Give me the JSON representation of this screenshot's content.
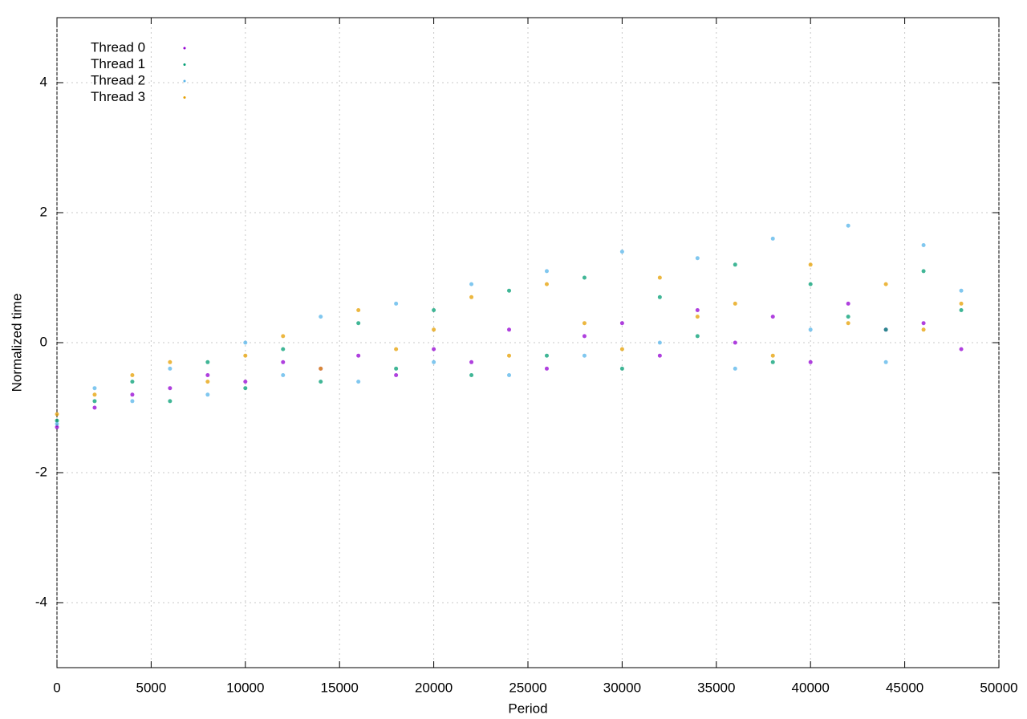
{
  "chart_data": {
    "type": "scatter",
    "xlabel": "Period",
    "ylabel": "Normalized time",
    "x": [
      0,
      2000,
      4000,
      6000,
      8000,
      10000,
      12000,
      14000,
      16000,
      18000,
      20000,
      22000,
      24000,
      26000,
      28000,
      30000,
      32000,
      34000,
      36000,
      38000,
      40000,
      42000,
      44000,
      46000,
      48000
    ],
    "series": [
      {
        "name": "Thread 0",
        "color": "#9400d3",
        "values": [
          -1.3,
          -1.0,
          -0.8,
          -0.7,
          -0.5,
          -0.6,
          -0.3,
          -0.4,
          -0.2,
          -0.5,
          -0.1,
          -0.3,
          0.2,
          -0.4,
          0.1,
          0.3,
          -0.2,
          0.5,
          0.0,
          0.4,
          -0.3,
          0.6,
          0.2,
          0.3,
          -0.1
        ]
      },
      {
        "name": "Thread 1",
        "color": "#009e73",
        "values": [
          -1.2,
          -0.9,
          -0.6,
          -0.9,
          -0.3,
          -0.7,
          -0.1,
          -0.6,
          0.3,
          -0.4,
          0.5,
          -0.5,
          0.8,
          -0.2,
          1.0,
          -0.4,
          0.7,
          0.1,
          1.2,
          -0.3,
          0.9,
          0.4,
          0.2,
          1.1,
          0.5
        ]
      },
      {
        "name": "Thread 2",
        "color": "#56b4e9",
        "values": [
          -1.25,
          -0.7,
          -0.9,
          -0.4,
          -0.8,
          0.0,
          -0.5,
          0.4,
          -0.6,
          0.6,
          -0.3,
          0.9,
          -0.5,
          1.1,
          -0.2,
          1.4,
          0.0,
          1.3,
          -0.4,
          1.6,
          0.2,
          1.8,
          -0.3,
          1.5,
          0.8
        ]
      },
      {
        "name": "Thread 3",
        "color": "#e69f00",
        "values": [
          -1.1,
          -0.8,
          -0.5,
          -0.3,
          -0.6,
          -0.2,
          0.1,
          -0.4,
          0.5,
          -0.1,
          0.2,
          0.7,
          -0.2,
          0.9,
          0.3,
          -0.1,
          1.0,
          0.4,
          0.6,
          -0.2,
          1.2,
          0.3,
          0.9,
          0.2,
          0.6
        ]
      }
    ],
    "xlim": [
      0,
      50000
    ],
    "xticks": [
      0,
      5000,
      10000,
      15000,
      20000,
      25000,
      30000,
      35000,
      40000,
      45000,
      50000
    ],
    "ylim": [
      -5,
      5
    ],
    "yticks": [
      -4,
      -2,
      0,
      2,
      4
    ],
    "grid": true,
    "legend": "top-left"
  }
}
